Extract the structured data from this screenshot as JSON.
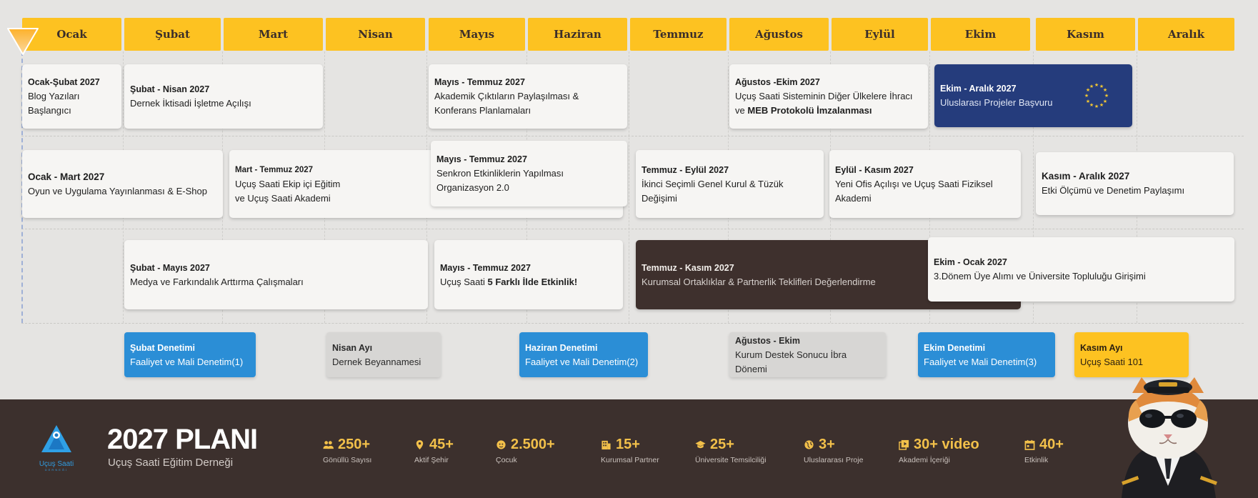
{
  "months": [
    "Ocak",
    "Şubat",
    "Mart",
    "Nisan",
    "Mayıs",
    "Haziran",
    "Temmuz",
    "Ağustos",
    "Eylül",
    "Ekim",
    "Kasım",
    "Aralık"
  ],
  "row1": [
    {
      "title": "Ocak-Şubat 2027",
      "desc": "Blog Yazıları Başlangıcı"
    },
    {
      "title": "Şubat - Nisan 2027",
      "desc": "Dernek İktisadi İşletme Açılışı"
    },
    {
      "title": "Mayıs - Temmuz 2027",
      "desc": "Akademik Çıktıların Paylaşılması & Konferans Planlamaları"
    },
    {
      "title": "Ağustos -Ekim 2027",
      "desc": "Uçuş Saati Sisteminin Diğer Ülkelere İhracı ve",
      "desc_bold": "MEB Protokolü İmzalanması"
    },
    {
      "title": "Ekim - Aralık 2027",
      "desc": "Uluslarası Projeler Başvuru"
    }
  ],
  "row2": [
    {
      "title": "Ocak - Mart 2027",
      "desc": "Oyun ve Uygulama Yayınlanması & E-Shop"
    },
    {
      "title": "Mart - Temmuz 2027",
      "desc": "Uçuş Saati Ekip içi Eğitim ve Uçuş Saati Akademi"
    },
    {
      "title": "Mayıs - Temmuz 2027",
      "desc": "Senkron Etkinliklerin Yapılması Organizasyon 2.0"
    },
    {
      "title": "Temmuz - Eylül 2027",
      "desc": "İkinci Seçimli Genel Kurul & Tüzük Değişimi"
    },
    {
      "title": "Eylül - Kasım 2027",
      "desc": "Yeni Ofis Açılışı ve Uçuş Saati Fiziksel Akademi"
    },
    {
      "title": "Kasım - Aralık 2027",
      "desc": "Etki Ölçümü ve Denetim Paylaşımı"
    }
  ],
  "row3": [
    {
      "title": "Şubat - Mayıs 2027",
      "desc": "Medya ve Farkındalık Arttırma Çalışmaları"
    },
    {
      "title": "Mayıs - Temmuz 2027",
      "desc": "Uçuş Saati ",
      "desc_bold": "5 Farklı İlde Etkinlik!"
    },
    {
      "title": "Temmuz - Kasım 2027",
      "desc": "Kurumsal Ortaklıklar & Partnerlik Teklifleri Değerlendirme"
    },
    {
      "title": "Ekim - Ocak 2027",
      "desc": "3.Dönem Üye Alımı ve Üniversite Topluluğu Girişimi"
    }
  ],
  "mini": [
    {
      "title": "Şubat Denetimi",
      "desc": "Faaliyet ve Mali Denetim(1)"
    },
    {
      "title": "Nisan Ayı",
      "desc": "Dernek Beyannamesi"
    },
    {
      "title": "Haziran Denetimi",
      "desc": "Faaliyet ve Mali Denetim(2)"
    },
    {
      "title": "Ağustos - Ekim",
      "desc": "Kurum Destek Sonucu İbra Dönemi"
    },
    {
      "title": "Ekim Denetimi",
      "desc": "Faaliyet ve Mali Denetim(3)"
    },
    {
      "title": "Kasım Ayı",
      "desc": "Uçuş Saati 101"
    }
  ],
  "footer": {
    "logo_text": "Uçuş Saati",
    "logo_sub": "DERNEĞİ",
    "title": "2027 PLANI",
    "subtitle": "Uçuş Saati Eğitim Derneği",
    "stats": [
      {
        "value": "250+",
        "label": "Gönüllü Sayısı",
        "icon": "people-icon"
      },
      {
        "value": "45+",
        "label": "Aktif Şehir",
        "icon": "location-pin-icon"
      },
      {
        "value": "2.500+",
        "label": "Çocuk",
        "icon": "child-face-icon"
      },
      {
        "value": "15+",
        "label": "Kurumsal Partner",
        "icon": "building-icon"
      },
      {
        "value": "25+",
        "label": "Üniversite Temsilciliği",
        "icon": "graduation-cap-icon"
      },
      {
        "value": "3+",
        "label": "Uluslararası Proje",
        "icon": "globe-icon"
      },
      {
        "value": "30+ video",
        "label": "Akademi İçeriği",
        "icon": "video-library-icon"
      },
      {
        "value": "40+",
        "label": "Etkinlik",
        "icon": "calendar-icon"
      }
    ]
  },
  "colors": {
    "month_bg": "#fdc221",
    "dark_card": "#3e302d",
    "eu_blue": "#253c7c",
    "blue_mini": "#2b8ed6",
    "footer_bg": "#3c302d",
    "stat_value": "#f2c04a"
  }
}
